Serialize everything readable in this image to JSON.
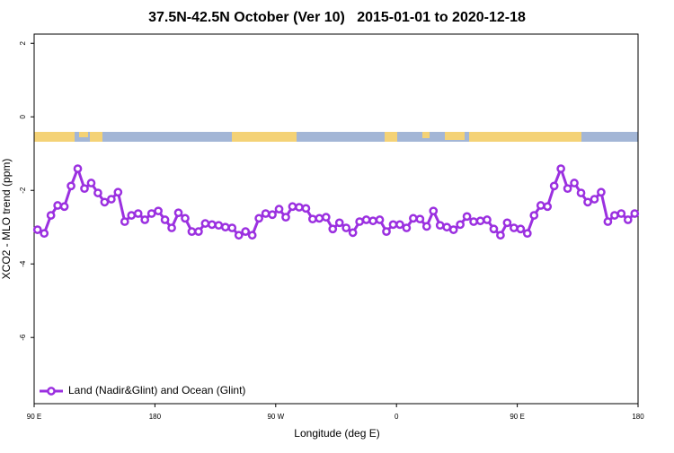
{
  "chart_data": {
    "type": "line",
    "title": "37.5N-42.5N October (Ver 10)   2015-01-01 to 2020-12-18",
    "xlabel": "Longitude (deg E)",
    "ylabel": "XCO2 - MLO trend (ppm)",
    "xlim": [
      90,
      540
    ],
    "xticks": [
      {
        "value": 90,
        "label": "90 E"
      },
      180,
      {
        "value": 270,
        "label": "90 W"
      },
      {
        "value": 360,
        "label": "0"
      },
      {
        "value": 450,
        "label": "90 E"
      },
      {
        "value": 540,
        "label": "180"
      }
    ],
    "ylim": [
      -7.8,
      2.25
    ],
    "yticks": [
      2,
      0,
      -2,
      -4,
      -6
    ],
    "grid": false,
    "legend": "bottom-left",
    "x": [
      92.5,
      97.5,
      102.5,
      107.5,
      112.5,
      117.5,
      122.5,
      127.5,
      132.5,
      137.5,
      142.5,
      147.5,
      152.5,
      157.5,
      162.5,
      167.5,
      172.5,
      177.5,
      182.5,
      187.5,
      192.5,
      197.5,
      202.5,
      207.5,
      212.5,
      217.5,
      222.5,
      227.5,
      232.5,
      237.5,
      242.5,
      247.5,
      252.5,
      257.5,
      262.5,
      267.5,
      272.5,
      277.5,
      282.5,
      287.5,
      292.5,
      297.5,
      302.5,
      307.5,
      312.5,
      317.5,
      322.5,
      327.5,
      332.5,
      337.5,
      342.5,
      347.5,
      352.5,
      357.5,
      362.5,
      367.5,
      372.5,
      377.5,
      382.5,
      387.5,
      392.5,
      397.5,
      402.5,
      407.5,
      412.5,
      417.5,
      422.5,
      427.5,
      432.5,
      437.5,
      442.5,
      447.5,
      452.5,
      457.5,
      462.5,
      467.5,
      472.5,
      477.5,
      482.5,
      487.5,
      492.5,
      497.5,
      502.5,
      507.5,
      512.5,
      517.5,
      522.5,
      527.5,
      532.5,
      537.5
    ],
    "series": [
      {
        "name": "Land (Nadir&Glint) and Ocean (Glint)",
        "color": "#9b30e0",
        "values": [
          -3.07,
          -3.17,
          -2.68,
          -2.41,
          -2.44,
          -1.88,
          -1.41,
          -1.95,
          -1.8,
          -2.07,
          -2.32,
          -2.24,
          -2.05,
          -2.85,
          -2.68,
          -2.63,
          -2.8,
          -2.63,
          -2.56,
          -2.8,
          -3.02,
          -2.61,
          -2.76,
          -3.12,
          -3.12,
          -2.9,
          -2.93,
          -2.95,
          -3.0,
          -3.02,
          -3.22,
          -3.12,
          -3.22,
          -2.76,
          -2.63,
          -2.66,
          -2.51,
          -2.73,
          -2.44,
          -2.46,
          -2.49,
          -2.78,
          -2.76,
          -2.73,
          -3.05,
          -2.88,
          -3.02,
          -3.15,
          -2.85,
          -2.8,
          -2.83,
          -2.8,
          -3.12,
          -2.93,
          -2.93,
          -3.02,
          -2.76,
          -2.78,
          -2.98,
          -2.56,
          -2.95,
          -3.0,
          -3.07,
          -2.93,
          -2.71,
          -2.85,
          -2.83,
          -2.8,
          -3.05,
          -3.22,
          -2.88,
          -3.02,
          -3.05,
          -3.17,
          -2.68,
          -2.41,
          -2.44,
          -1.88,
          -1.41,
          -1.95,
          -1.8,
          -2.07,
          -2.32,
          -2.24,
          -2.05,
          -2.85,
          -2.68,
          -2.63,
          -2.8,
          -2.63
        ]
      }
    ]
  }
}
